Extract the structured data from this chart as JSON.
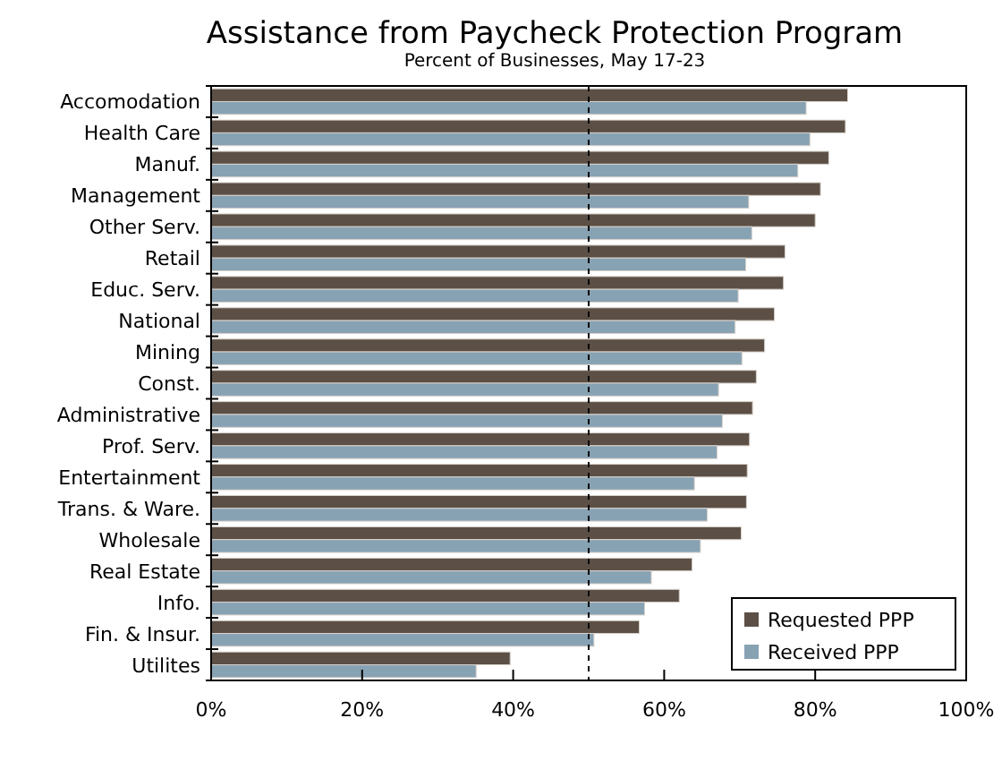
{
  "chart_data": {
    "type": "bar",
    "orientation": "horizontal",
    "title": "Assistance from Paycheck Protection Program",
    "subtitle": "Percent of Businesses, May 17-23",
    "categories": [
      "Accomodation",
      "Health Care",
      "Manuf.",
      "Management",
      "Other Serv.",
      "Retail",
      "Educ. Serv.",
      "National",
      "Mining",
      "Const.",
      "Administrative",
      "Prof. Serv.",
      "Entertainment",
      "Trans. & Ware.",
      "Wholesale",
      "Real Estate",
      "Info.",
      "Fin. & Insur.",
      "Utilites"
    ],
    "series": [
      {
        "name": "Requested PPP",
        "color": "#5c5046",
        "values": [
          84.3,
          84.0,
          81.8,
          80.7,
          80.0,
          76.0,
          75.8,
          74.6,
          73.3,
          72.2,
          71.7,
          71.3,
          71.0,
          70.9,
          70.2,
          63.7,
          62.0,
          56.7,
          39.6
        ]
      },
      {
        "name": "Received PPP",
        "color": "#87a2b3",
        "values": [
          78.8,
          79.3,
          77.7,
          71.2,
          71.6,
          70.8,
          69.8,
          69.4,
          70.3,
          67.2,
          67.7,
          67.0,
          64.0,
          65.7,
          64.8,
          58.3,
          57.4,
          50.7,
          35.1
        ]
      }
    ],
    "xlim": [
      0,
      100
    ],
    "xticks": [
      {
        "value": 0,
        "label": "0%"
      },
      {
        "value": 20,
        "label": "20%"
      },
      {
        "value": 40,
        "label": "40%"
      },
      {
        "value": 60,
        "label": "60%"
      },
      {
        "value": 80,
        "label": "80%"
      },
      {
        "value": 100,
        "label": "100%"
      }
    ],
    "ref_lines": [
      {
        "axis": "x",
        "value": 50,
        "line_style": "dashed",
        "color": "#000000"
      }
    ],
    "grid": false,
    "legend": "bottom right"
  }
}
